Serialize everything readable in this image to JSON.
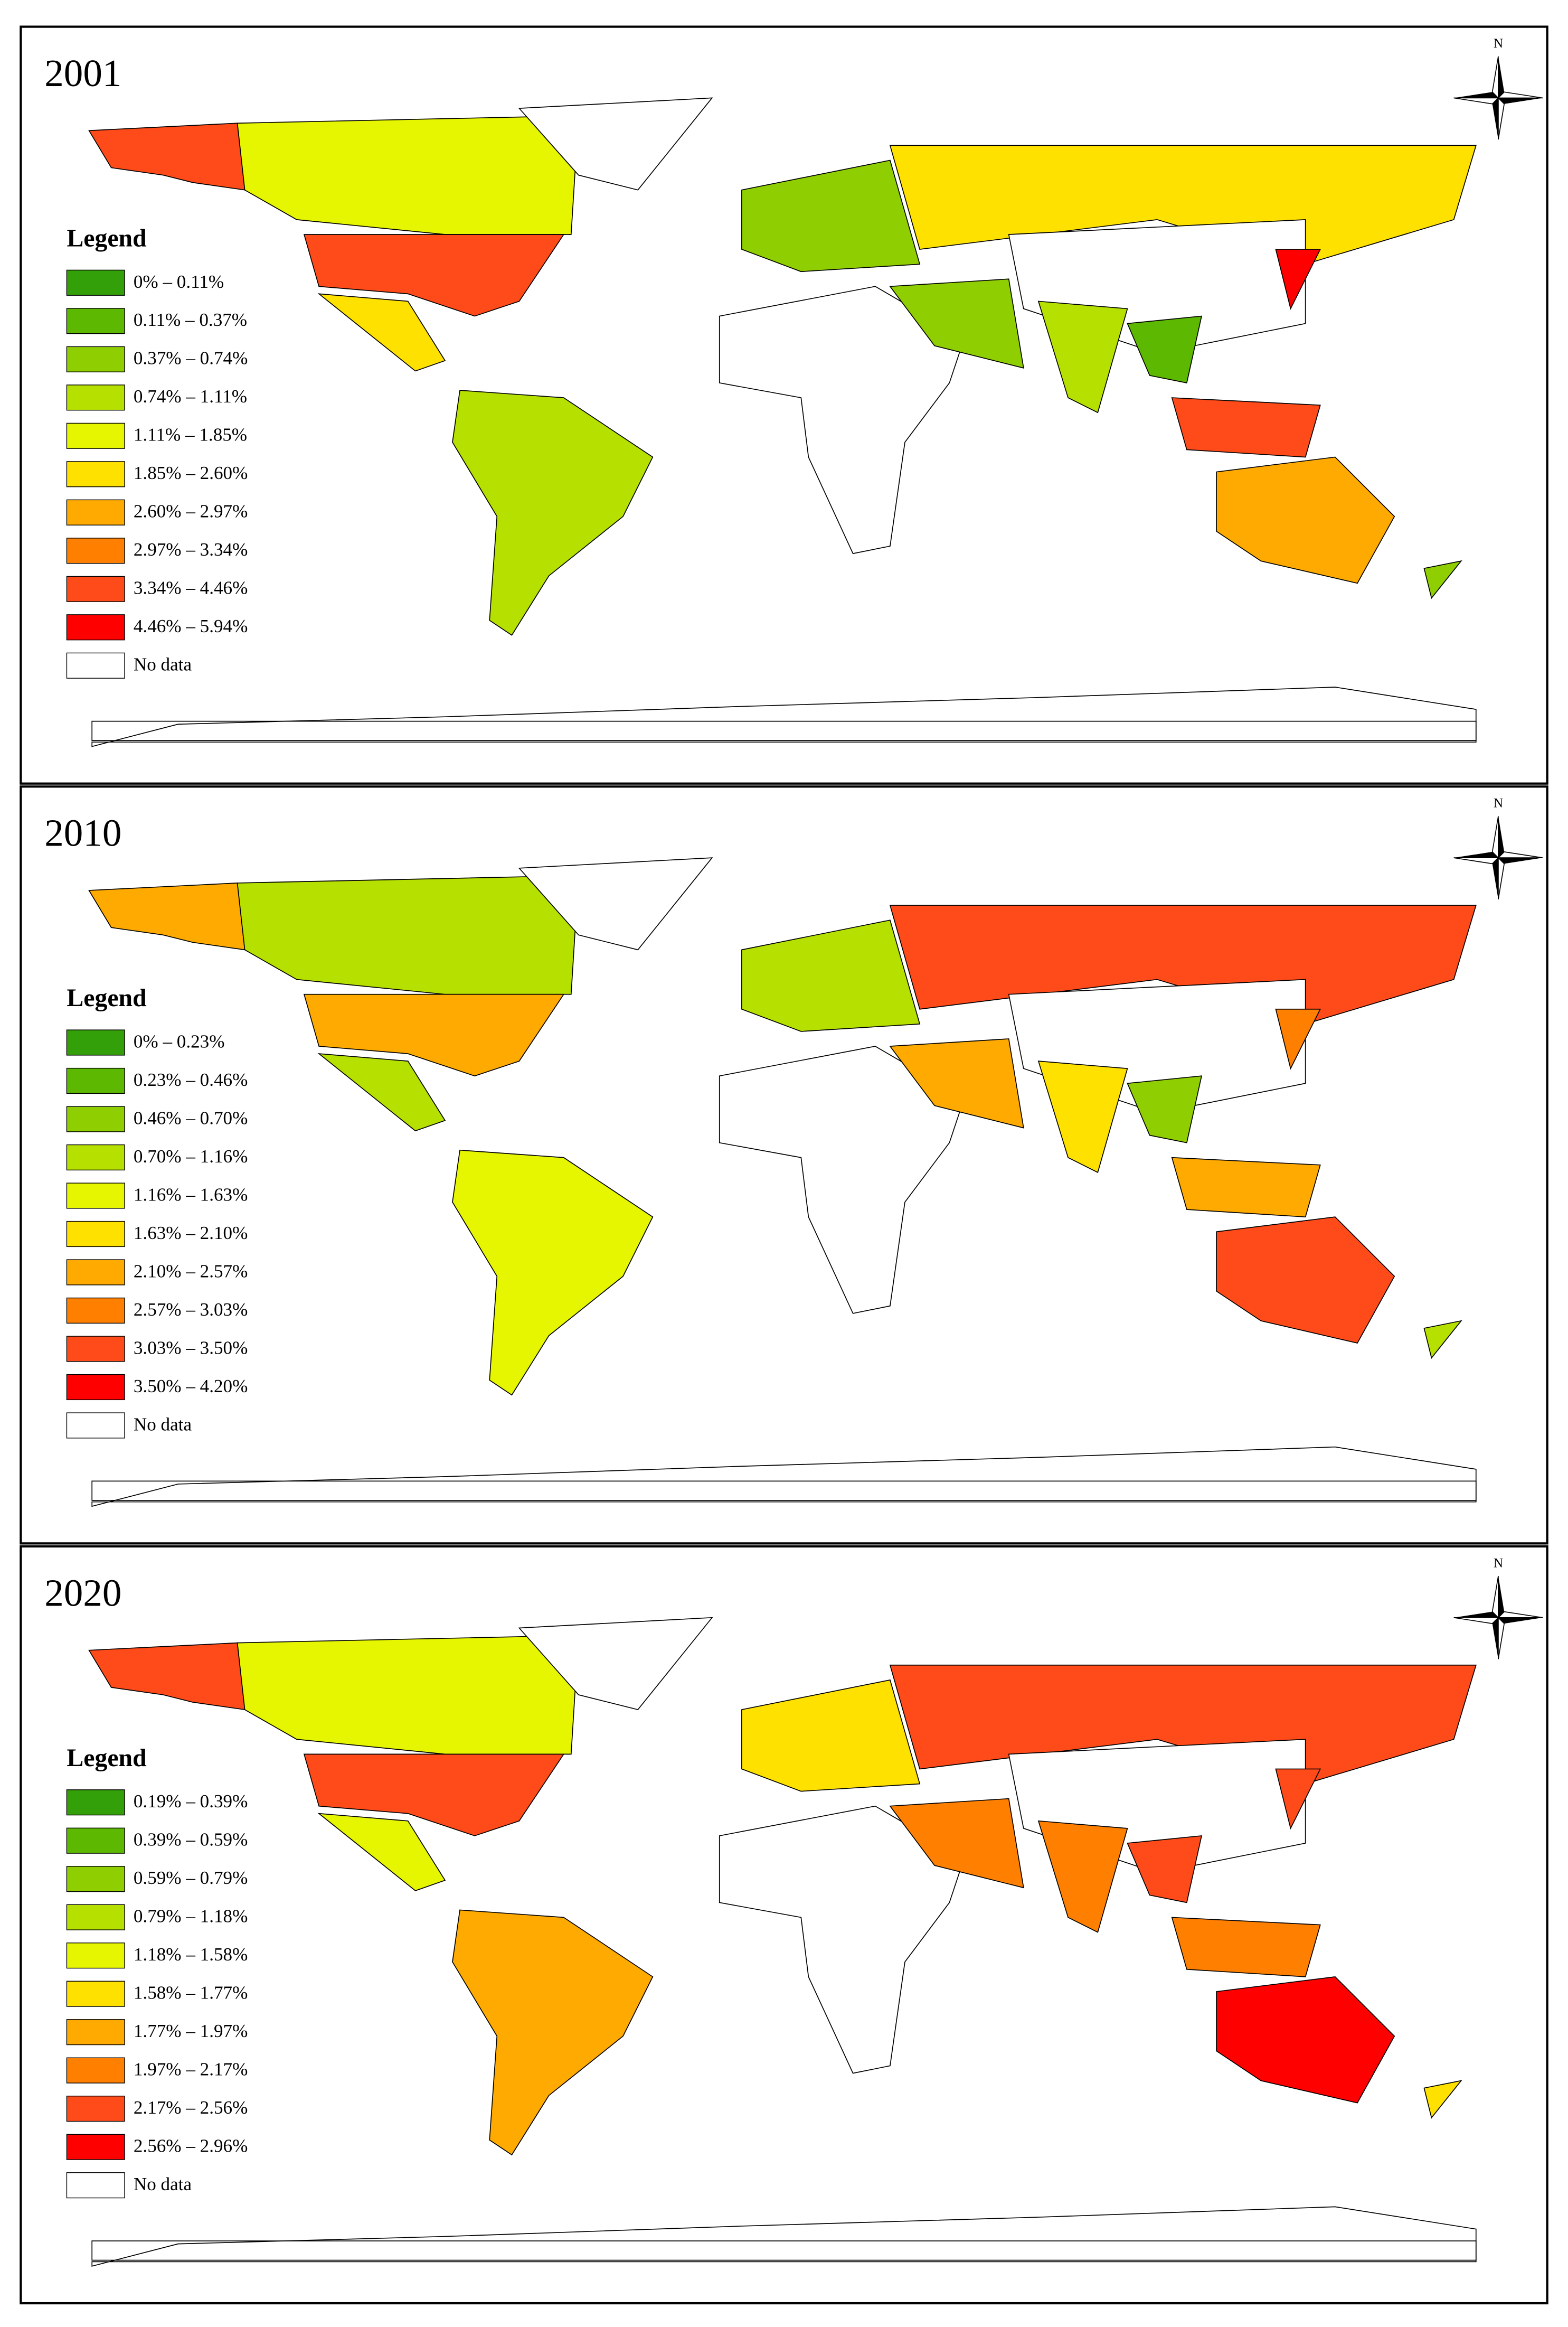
{
  "panels": [
    {
      "year": "2001",
      "north": "N",
      "legend": {
        "title": "Legend",
        "no_data": "No data",
        "items": [
          {
            "label": "0% – 0.11%",
            "color": "#33a00a"
          },
          {
            "label": "0.11% – 0.37%",
            "color": "#5cb800"
          },
          {
            "label": "0.37% – 0.74%",
            "color": "#8fce00"
          },
          {
            "label": "0.74% – 1.11%",
            "color": "#b5e000"
          },
          {
            "label": "1.11% – 1.85%",
            "color": "#e6f500"
          },
          {
            "label": "1.85% – 2.60%",
            "color": "#ffe100"
          },
          {
            "label": "2.60% – 2.97%",
            "color": "#ffaa00"
          },
          {
            "label": "2.97% – 3.34%",
            "color": "#ff7f00"
          },
          {
            "label": "3.34% – 4.46%",
            "color": "#ff4a1a"
          },
          {
            "label": "4.46% – 5.94%",
            "color": "#ff0000"
          }
        ]
      }
    },
    {
      "year": "2010",
      "north": "N",
      "legend": {
        "title": "Legend",
        "no_data": "No data",
        "items": [
          {
            "label": "0% – 0.23%",
            "color": "#33a00a"
          },
          {
            "label": "0.23% – 0.46%",
            "color": "#5cb800"
          },
          {
            "label": "0.46% – 0.70%",
            "color": "#8fce00"
          },
          {
            "label": "0.70% – 1.16%",
            "color": "#b5e000"
          },
          {
            "label": "1.16% – 1.63%",
            "color": "#e6f500"
          },
          {
            "label": "1.63% – 2.10%",
            "color": "#ffe100"
          },
          {
            "label": "2.10% – 2.57%",
            "color": "#ffaa00"
          },
          {
            "label": "2.57% – 3.03%",
            "color": "#ff7f00"
          },
          {
            "label": "3.03% – 3.50%",
            "color": "#ff4a1a"
          },
          {
            "label": "3.50% – 4.20%",
            "color": "#ff0000"
          }
        ]
      }
    },
    {
      "year": "2020",
      "north": "N",
      "legend": {
        "title": "Legend",
        "no_data": "No data",
        "items": [
          {
            "label": "0.19% – 0.39%",
            "color": "#33a00a"
          },
          {
            "label": "0.39% – 0.59%",
            "color": "#5cb800"
          },
          {
            "label": "0.59% – 0.79%",
            "color": "#8fce00"
          },
          {
            "label": "0.79% – 1.18%",
            "color": "#b5e000"
          },
          {
            "label": "1.18% – 1.58%",
            "color": "#e6f500"
          },
          {
            "label": "1.58% – 1.77%",
            "color": "#ffe100"
          },
          {
            "label": "1.77% – 1.97%",
            "color": "#ffaa00"
          },
          {
            "label": "1.97% – 2.17%",
            "color": "#ff7f00"
          },
          {
            "label": "2.17% – 2.56%",
            "color": "#ff4a1a"
          },
          {
            "label": "2.56% – 2.96%",
            "color": "#ff0000"
          }
        ]
      }
    }
  ]
}
